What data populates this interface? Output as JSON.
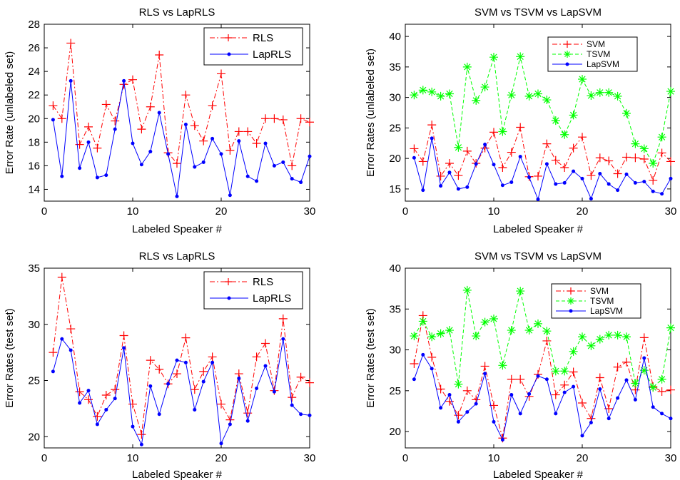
{
  "colors": {
    "rls": "#ff0000",
    "laprls": "#0000ff",
    "svm": "#ff0000",
    "tsvm": "#00ff00",
    "lapsvm": "#0000ff",
    "axis": "#000000"
  },
  "chart_data": [
    {
      "type": "line",
      "title": "RLS vs LapRLS",
      "xlabel": "Labeled Speaker #",
      "ylabel": "Error Rate (unlabeled set)",
      "xlim": [
        0,
        30
      ],
      "ylim": [
        13,
        28
      ],
      "xticks": [
        0,
        10,
        20,
        30
      ],
      "yticks": [
        14,
        16,
        18,
        20,
        22,
        24,
        26,
        28
      ],
      "legend": "top-right",
      "x": [
        1,
        2,
        3,
        4,
        5,
        6,
        7,
        8,
        9,
        10,
        11,
        12,
        13,
        14,
        15,
        16,
        17,
        18,
        19,
        20,
        21,
        22,
        23,
        24,
        25,
        26,
        27,
        28,
        29,
        30
      ],
      "series": [
        {
          "name": "RLS",
          "marker": "plus",
          "line": "dashdot",
          "color": "#ff0000",
          "values": [
            21.1,
            20.0,
            26.4,
            17.8,
            19.3,
            17.5,
            21.2,
            19.8,
            22.9,
            23.3,
            19.1,
            21.0,
            25.4,
            17.1,
            16.2,
            22.0,
            19.4,
            18.1,
            21.1,
            23.8,
            17.3,
            18.9,
            18.9,
            17.9,
            20.0,
            20.0,
            19.9,
            16.0,
            20.0,
            19.7
          ]
        },
        {
          "name": "LapRLS",
          "marker": "dot",
          "line": "solid",
          "color": "#0000ff",
          "values": [
            19.9,
            15.1,
            23.2,
            15.8,
            18.0,
            15.0,
            15.2,
            19.1,
            23.2,
            17.9,
            16.1,
            17.2,
            20.5,
            17.0,
            13.4,
            19.5,
            15.9,
            16.3,
            18.3,
            17.0,
            13.5,
            18.1,
            15.1,
            14.7,
            17.9,
            16.0,
            16.3,
            14.9,
            14.6,
            16.8
          ]
        }
      ]
    },
    {
      "type": "line",
      "title": "SVM vs TSVM vs LapSVM",
      "xlabel": "Labeled Speaker #",
      "ylabel": "Error Rates (unlabeled set)",
      "xlim": [
        0,
        30
      ],
      "ylim": [
        13,
        42
      ],
      "xticks": [
        0,
        10,
        20,
        30
      ],
      "yticks": [
        15,
        20,
        25,
        30,
        35,
        40
      ],
      "legend": "top-right",
      "x": [
        1,
        2,
        3,
        4,
        5,
        6,
        7,
        8,
        9,
        10,
        11,
        12,
        13,
        14,
        15,
        16,
        17,
        18,
        19,
        20,
        21,
        22,
        23,
        24,
        25,
        26,
        27,
        28,
        29,
        30
      ],
      "series": [
        {
          "name": "SVM",
          "marker": "plus",
          "line": "dashdot",
          "color": "#ff0000",
          "values": [
            21.6,
            19.5,
            25.5,
            17.1,
            19.2,
            17.2,
            21.2,
            19.2,
            21.7,
            24.3,
            18.5,
            21.0,
            25.1,
            17.0,
            17.1,
            22.4,
            19.7,
            18.5,
            21.7,
            23.5,
            17.2,
            20.1,
            19.6,
            17.5,
            20.2,
            20.1,
            19.9,
            16.4,
            20.9,
            19.5
          ]
        },
        {
          "name": "TSVM",
          "marker": "star",
          "line": "dashed",
          "color": "#00ff00",
          "values": [
            30.4,
            31.2,
            30.9,
            30.2,
            30.6,
            21.8,
            35.0,
            29.5,
            31.7,
            36.6,
            24.4,
            30.4,
            36.7,
            30.2,
            30.6,
            29.6,
            26.2,
            23.9,
            27.1,
            33.0,
            30.3,
            30.8,
            30.8,
            30.2,
            27.4,
            22.4,
            21.6,
            19.2,
            23.5,
            31.0
          ]
        },
        {
          "name": "LapSVM",
          "marker": "dot",
          "line": "solid",
          "color": "#0000ff",
          "values": [
            20.1,
            14.8,
            23.3,
            15.5,
            17.7,
            15.0,
            15.3,
            19.1,
            22.3,
            19.0,
            15.6,
            16.1,
            20.3,
            16.9,
            13.3,
            19.1,
            15.8,
            16.0,
            17.9,
            16.7,
            13.4,
            17.5,
            15.8,
            14.8,
            17.4,
            16.0,
            16.2,
            14.6,
            14.2,
            16.7
          ]
        }
      ]
    },
    {
      "type": "line",
      "title": "RLS vs LapRLS",
      "xlabel": "Labeled Speaker #",
      "ylabel": "Error Rates (test set)",
      "xlim": [
        0,
        30
      ],
      "ylim": [
        19,
        35
      ],
      "xticks": [
        0,
        10,
        20,
        30
      ],
      "yticks": [
        20,
        25,
        30,
        35
      ],
      "legend": "top-right",
      "x": [
        1,
        2,
        3,
        4,
        5,
        6,
        7,
        8,
        9,
        10,
        11,
        12,
        13,
        14,
        15,
        16,
        17,
        18,
        19,
        20,
        21,
        22,
        23,
        24,
        25,
        26,
        27,
        28,
        29,
        30
      ],
      "series": [
        {
          "name": "RLS",
          "marker": "plus",
          "line": "dashdot",
          "color": "#ff0000",
          "values": [
            27.5,
            34.2,
            29.6,
            24.0,
            23.3,
            21.8,
            23.7,
            24.2,
            29.0,
            22.9,
            20.2,
            26.8,
            26.0,
            24.7,
            25.6,
            28.8,
            24.2,
            25.8,
            27.1,
            22.9,
            21.5,
            25.6,
            22.1,
            27.1,
            28.3,
            24.1,
            30.5,
            23.5,
            25.3,
            24.8
          ]
        },
        {
          "name": "LapRLS",
          "marker": "dot",
          "line": "solid",
          "color": "#0000ff",
          "values": [
            25.8,
            28.7,
            27.7,
            23.0,
            24.1,
            21.1,
            22.4,
            23.4,
            27.9,
            20.9,
            19.3,
            24.5,
            22.0,
            24.7,
            26.8,
            26.6,
            22.4,
            24.9,
            26.6,
            19.4,
            21.1,
            25.2,
            21.4,
            24.3,
            26.3,
            24.0,
            28.7,
            22.8,
            22.0,
            21.9
          ]
        }
      ]
    },
    {
      "type": "line",
      "title": "SVM vs TSVM vs LapSVM",
      "xlabel": "Labeled Speaker #",
      "ylabel": "Error Rates (test set)",
      "xlim": [
        0,
        30
      ],
      "ylim": [
        18,
        40
      ],
      "xticks": [
        0,
        10,
        20,
        30
      ],
      "yticks": [
        20,
        25,
        30,
        35,
        40
      ],
      "legend": "top-right",
      "x": [
        1,
        2,
        3,
        4,
        5,
        6,
        7,
        8,
        9,
        10,
        11,
        12,
        13,
        14,
        15,
        16,
        17,
        18,
        19,
        20,
        21,
        22,
        23,
        24,
        25,
        26,
        27,
        28,
        29,
        30
      ],
      "series": [
        {
          "name": "SVM",
          "marker": "plus",
          "line": "dashdot",
          "color": "#ff0000",
          "values": [
            28.3,
            34.2,
            29.1,
            25.2,
            23.7,
            22.0,
            25.0,
            23.9,
            28.0,
            23.2,
            19.2,
            26.4,
            26.4,
            24.3,
            27.0,
            31.1,
            24.5,
            25.7,
            27.3,
            23.5,
            21.6,
            26.6,
            22.8,
            27.9,
            28.5,
            25.1,
            31.5,
            25.5,
            24.9,
            25.1
          ]
        },
        {
          "name": "TSVM",
          "marker": "star",
          "line": "dashed",
          "color": "#00ff00",
          "values": [
            31.7,
            33.5,
            31.6,
            32.0,
            32.4,
            25.8,
            37.3,
            31.7,
            33.4,
            33.8,
            28.1,
            32.4,
            37.2,
            32.4,
            33.2,
            32.3,
            27.4,
            27.4,
            29.8,
            31.6,
            30.5,
            31.3,
            31.8,
            31.8,
            31.6,
            25.9,
            27.5,
            25.4,
            26.4,
            32.7
          ]
        },
        {
          "name": "LapSVM",
          "marker": "dot",
          "line": "solid",
          "color": "#0000ff",
          "values": [
            26.4,
            29.4,
            27.7,
            22.9,
            24.5,
            21.2,
            22.4,
            23.4,
            27.1,
            21.2,
            19.0,
            24.5,
            22.2,
            24.6,
            26.8,
            26.4,
            22.2,
            24.8,
            25.5,
            19.5,
            21.1,
            25.2,
            21.6,
            24.1,
            26.3,
            23.9,
            29.0,
            23.0,
            22.2,
            21.6
          ]
        }
      ]
    }
  ]
}
